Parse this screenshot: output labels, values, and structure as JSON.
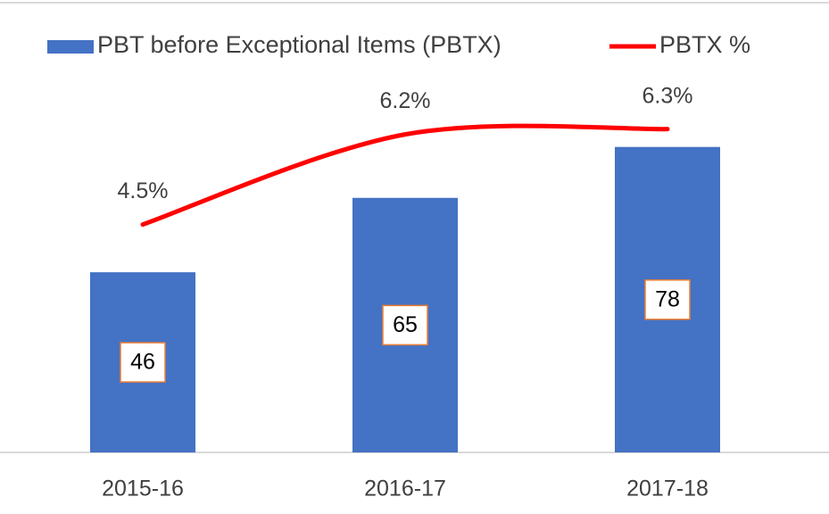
{
  "chart_data": {
    "type": "bar",
    "categories": [
      "2015-16",
      "2016-17",
      "2017-18"
    ],
    "series": [
      {
        "name": "PBT before Exceptional Items (PBTX)",
        "type": "bar",
        "color": "#4472c4",
        "values": [
          46,
          65,
          78
        ]
      },
      {
        "name": "PBTX %",
        "type": "line",
        "axis": "y2",
        "color": "#ff0000",
        "values": [
          4.5,
          6.2,
          6.3
        ],
        "value_labels": [
          "4.5%",
          "6.2%",
          "6.3%"
        ]
      }
    ],
    "ylim": [
      0,
      90
    ],
    "y2lim": [
      0.2,
      6.85
    ],
    "legend": "top"
  }
}
